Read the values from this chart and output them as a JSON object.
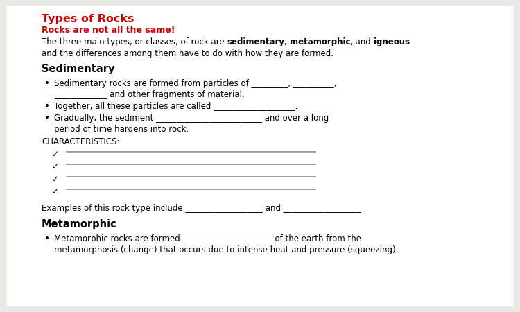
{
  "bg_color": "#e8e8e4",
  "page_bg": "#ffffff",
  "title": "Types of Rocks",
  "subtitle": "Rocks are not all the same!",
  "title_color": "#cc0000",
  "subtitle_color": "#cc0000",
  "section1_heading": "Sedimentary",
  "bullet1_line1": "Sedimentary rocks are formed from particles of _________, __________,",
  "bullet1_line2": "_____________ and other fragments of material.",
  "bullet2": "Together, all these particles are called ____________________.",
  "bullet3_line1": "Gradually, the sediment __________________________ and over a long",
  "bullet3_line2": "period of time hardens into rock.",
  "char_heading": "CHARACTERISTICS:",
  "example_line1": "Examples of this rock type include ___________________ and ___________________",
  "section2_heading": "Metamorphic",
  "meta_bullet_line1": "Metamorphic rocks are formed ______________________ of the earth from the",
  "meta_bullet_line2": "metamorphosis (change) that occurs due to intense heat and pressure (squeezing).",
  "line_color": "#999999",
  "text_color": "#000000",
  "font_size": 8.5
}
